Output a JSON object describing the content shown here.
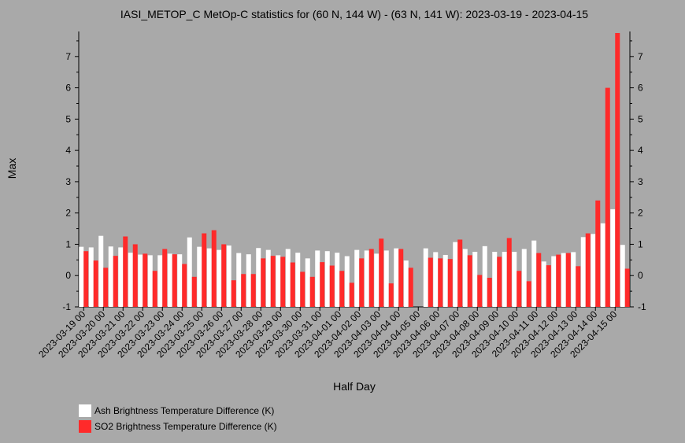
{
  "chart_data": {
    "type": "bar",
    "title": "IASI_METOP_C MetOp-C statistics for (60 N, 144 W) - (63 N, 141 W): 2023-03-19 - 2023-04-15",
    "xlabel": "Half Day",
    "ylabel": "Max",
    "ylim": [
      -1,
      7.8
    ],
    "yticks": [
      -1,
      0,
      1,
      2,
      3,
      4,
      5,
      6,
      7
    ],
    "categories": [
      "2023-03-19 00",
      "2023-03-19 12",
      "2023-03-20 00",
      "2023-03-20 12",
      "2023-03-21 00",
      "2023-03-21 12",
      "2023-03-22 00",
      "2023-03-22 12",
      "2023-03-23 00",
      "2023-03-23 12",
      "2023-03-24 00",
      "2023-03-24 12",
      "2023-03-25 00",
      "2023-03-25 12",
      "2023-03-26 00",
      "2023-03-26 12",
      "2023-03-27 00",
      "2023-03-27 12",
      "2023-03-28 00",
      "2023-03-28 12",
      "2023-03-29 00",
      "2023-03-29 12",
      "2023-03-30 00",
      "2023-03-30 12",
      "2023-03-31 00",
      "2023-03-31 12",
      "2023-04-01 00",
      "2023-04-01 12",
      "2023-04-02 00",
      "2023-04-02 12",
      "2023-04-03 00",
      "2023-04-03 12",
      "2023-04-04 00",
      "2023-04-04 12",
      "2023-04-05 00",
      "2023-04-05 12",
      "2023-04-06 00",
      "2023-04-06 12",
      "2023-04-07 00",
      "2023-04-07 12",
      "2023-04-08 00",
      "2023-04-08 12",
      "2023-04-09 00",
      "2023-04-09 12",
      "2023-04-10 00",
      "2023-04-10 12",
      "2023-04-11 00",
      "2023-04-11 12",
      "2023-04-12 00",
      "2023-04-12 12",
      "2023-04-13 00",
      "2023-04-13 12",
      "2023-04-14 00",
      "2023-04-14 12",
      "2023-04-15 00",
      "2023-04-15 12"
    ],
    "tick_labels": [
      "2023-03-19 00",
      "2023-03-20 00",
      "2023-03-21 00",
      "2023-03-22 00",
      "2023-03-23 00",
      "2023-03-24 00",
      "2023-03-25 00",
      "2023-03-26 00",
      "2023-03-27 00",
      "2023-03-28 00",
      "2023-03-29 00",
      "2023-03-30 00",
      "2023-03-31 00",
      "2023-04-01 00",
      "2023-04-02 00",
      "2023-04-03 00",
      "2023-04-04 00",
      "2023-04-05 00",
      "2023-04-06 00",
      "2023-04-07 00",
      "2023-04-08 00",
      "2023-04-09 00",
      "2023-04-10 00",
      "2023-04-11 00",
      "2023-04-12 00",
      "2023-04-13 00",
      "2023-04-14 00",
      "2023-04-15 00"
    ],
    "series": [
      {
        "name": "Ash Brightness Temperature Difference (K)",
        "color": "#ffffff",
        "values": [
          0.92,
          0.9,
          1.27,
          0.93,
          0.9,
          0.73,
          0.67,
          0.65,
          0.65,
          0.7,
          0.68,
          1.22,
          0.92,
          0.87,
          0.82,
          0.96,
          0.72,
          0.68,
          0.88,
          0.82,
          0.65,
          0.85,
          0.73,
          0.55,
          0.8,
          0.78,
          0.73,
          0.62,
          0.82,
          0.8,
          0.7,
          0.8,
          0.87,
          0.48,
          null,
          0.87,
          0.75,
          0.66,
          1.07,
          0.85,
          0.76,
          0.94,
          0.76,
          0.76,
          0.76,
          0.85,
          1.12,
          0.45,
          0.62,
          0.72,
          0.75,
          1.23,
          1.33,
          1.67,
          2.12,
          0.98
        ]
      },
      {
        "name": "SO2 Brightness Temperature Difference (K)",
        "color": "#ff2a2a",
        "values": [
          0.78,
          0.48,
          0.25,
          0.63,
          1.25,
          1.0,
          0.7,
          0.15,
          0.85,
          0.68,
          0.37,
          -0.04,
          1.35,
          1.45,
          1.0,
          -0.15,
          0.05,
          0.05,
          0.55,
          0.63,
          0.6,
          0.42,
          0.12,
          -0.04,
          0.43,
          0.32,
          0.15,
          -0.23,
          0.55,
          0.85,
          1.18,
          -0.25,
          0.85,
          0.25,
          null,
          0.57,
          0.55,
          0.53,
          1.15,
          0.65,
          0.02,
          -0.07,
          0.6,
          1.2,
          0.15,
          -0.18,
          0.72,
          0.33,
          0.67,
          0.72,
          0.3,
          1.35,
          2.4,
          6.0,
          7.75,
          0.22
        ]
      }
    ],
    "legend_position": "bottom-left"
  }
}
